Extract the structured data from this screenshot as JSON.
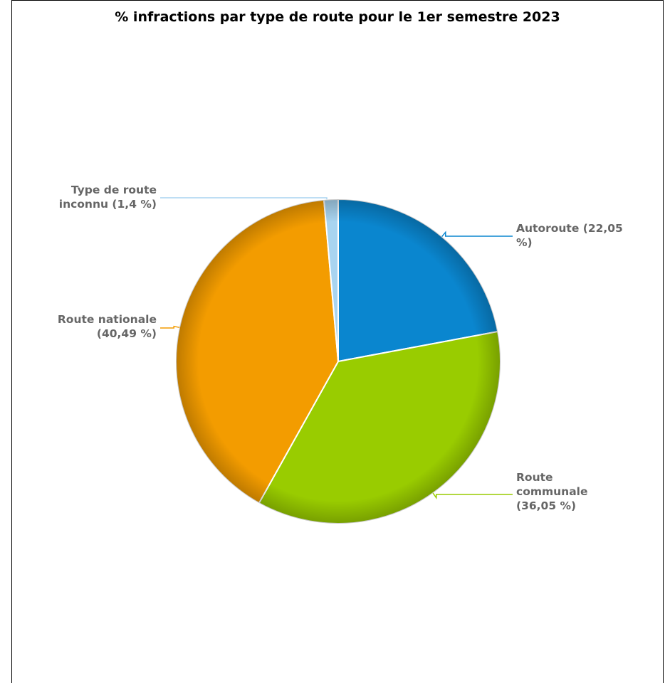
{
  "chart_data": {
    "type": "pie",
    "title": "% infractions par type de route pour le 1er semestre 2023",
    "slices": [
      {
        "label_lines": [
          "Autoroute (22,05",
          "%)"
        ],
        "value": 22.05,
        "color": "#0a86cf"
      },
      {
        "label_lines": [
          "Route",
          "communale",
          "(36,05 %)"
        ],
        "value": 36.05,
        "color": "#99cc00"
      },
      {
        "label_lines": [
          "Route nationale",
          "(40,49 %)"
        ],
        "value": 40.49,
        "color": "#f39c00"
      },
      {
        "label_lines": [
          "Type de route",
          "inconnu (1,4 %)"
        ],
        "value": 1.4,
        "color": "#a8d4f0"
      }
    ]
  }
}
